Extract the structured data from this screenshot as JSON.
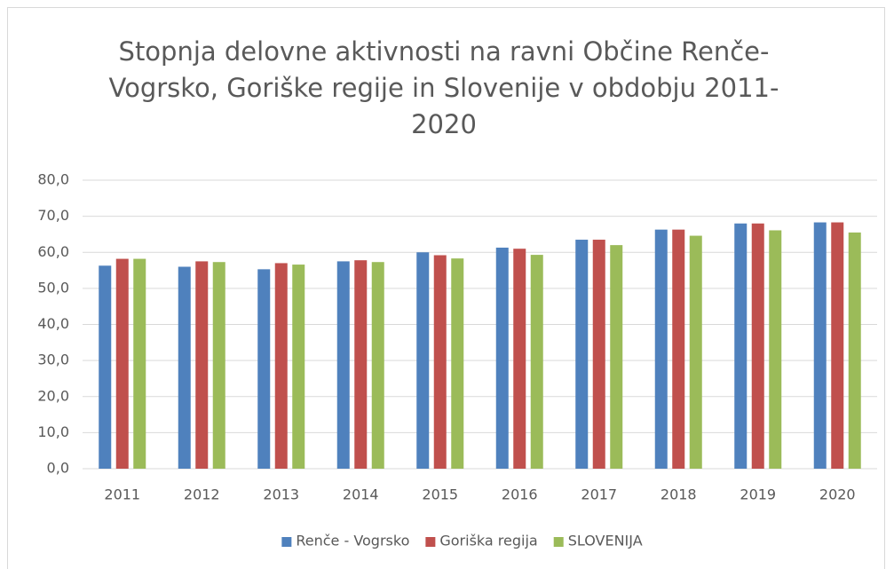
{
  "chart_data": {
    "type": "bar",
    "title": "Stopnja delovne aktivnosti na ravni Občine Renče-Vogrsko, Goriške regije in Slovenije v obdobju 2011-2020",
    "categories": [
      "2011",
      "2012",
      "2013",
      "2014",
      "2015",
      "2016",
      "2017",
      "2018",
      "2019",
      "2020"
    ],
    "series": [
      {
        "name": "Renče - Vogrsko",
        "color": "#4f81bd",
        "values": [
          56.3,
          56.0,
          55.3,
          57.5,
          60.0,
          61.3,
          63.5,
          66.3,
          68.0,
          68.3
        ]
      },
      {
        "name": "Goriška regija",
        "color": "#c0504d",
        "values": [
          58.2,
          57.5,
          57.0,
          57.8,
          59.2,
          61.0,
          63.5,
          66.3,
          68.0,
          68.3
        ]
      },
      {
        "name": "SLOVENIJA",
        "color": "#9bbb59",
        "values": [
          58.2,
          57.3,
          56.6,
          57.3,
          58.3,
          59.3,
          62.0,
          64.6,
          66.1,
          65.5
        ]
      }
    ],
    "ylim": [
      0,
      80
    ],
    "yticks": [
      {
        "value": 0,
        "label": "0,0"
      },
      {
        "value": 10,
        "label": "10,0"
      },
      {
        "value": 20,
        "label": "20,0"
      },
      {
        "value": 30,
        "label": "30,0"
      },
      {
        "value": 40,
        "label": "40,0"
      },
      {
        "value": 50,
        "label": "50,0"
      },
      {
        "value": 60,
        "label": "60,0"
      },
      {
        "value": 70,
        "label": "70,0"
      },
      {
        "value": 80,
        "label": "80,0"
      }
    ],
    "grid": true,
    "legend": "bottom"
  }
}
